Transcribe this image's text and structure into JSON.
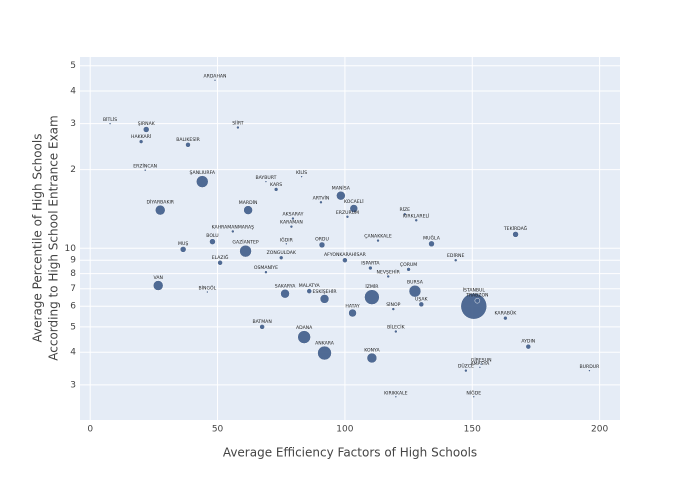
{
  "chart_data": {
    "type": "scatter",
    "xlabel": "Average Efficiency Factors of High Schools",
    "ylabel": [
      "Average Percentile of High Schools",
      "According to High School Entrance Exam"
    ],
    "xlim": [
      -4,
      208
    ],
    "ylim": [
      2.2,
      54
    ],
    "log_y": true,
    "grid": true,
    "color": "#48648f",
    "xticks": [
      0,
      50,
      100,
      150,
      200
    ],
    "yticks": [
      3,
      4,
      5,
      6,
      7,
      8,
      9,
      10,
      {
        "value": 20,
        "label": "2"
      },
      {
        "value": 30,
        "label": "3"
      },
      {
        "value": 40,
        "label": "4"
      },
      {
        "value": 50,
        "label": "5"
      }
    ],
    "labels": [
      "ARDAHAN",
      "BİTLİS",
      "ŞIRNAK",
      "HAKKARİ",
      "SİİRT",
      "BALIKESİR",
      "ERZİNCAN",
      "ŞANLIURFA",
      "BAYBURT",
      "KARS",
      "KİLİS",
      "MANİSA",
      "ARTVİN",
      "KOCAELİ",
      "DİYARBAKIR",
      "MARDİN",
      "ERZURUM",
      "RİZE",
      "KIRKLARELİ",
      "AKSARAY",
      "KARAMAN",
      "TEKİRDAĞ",
      "ÇANAKKALE",
      "MUĞLA",
      "KAHRAMANMARAŞ",
      "BOLU",
      "MUŞ",
      "GAZİANTEP",
      "IĞDIR",
      "ORDU",
      "AFYONKARAHİSAR",
      "ISPARTA",
      "EDİRNE",
      "ELAZIĞ",
      "ZONGULDAK",
      "OSMANİYE",
      "NEVŞEHİR",
      "ÇORUM",
      "BURSA",
      "İSTANBUL",
      "TRABZON",
      "UŞAK",
      "VAN",
      "BİNGÖL",
      "SAKARYA",
      "MALATYA",
      "ESKİŞEHİR",
      "İZMİR",
      "ANKARA",
      "ADANA",
      "KONYA",
      "BATMAN",
      "SİNOP",
      "HATAY",
      "BİLECİK",
      "KARABÜK",
      "AYDIN",
      "AMASYA",
      "GİRESUN",
      "DÜZCE",
      "BURDUR",
      "KIRIKKALE",
      "NİĞDE"
    ],
    "x": [
      49,
      7.8,
      22,
      20,
      58,
      38.4,
      21.6,
      44,
      69,
      73,
      83,
      98.4,
      90.6,
      103.5,
      27.5,
      62,
      101,
      123.5,
      128,
      79.6,
      79,
      167,
      113,
      134,
      56,
      48,
      36.5,
      61,
      77,
      91,
      100,
      110,
      143.5,
      51,
      75,
      69,
      117,
      125,
      127.5,
      150.6,
      152,
      130,
      26.7,
      46,
      76.5,
      86,
      92,
      110.6,
      92,
      84,
      110.6,
      67.5,
      119,
      103,
      120,
      163,
      172,
      153,
      153.5,
      147.5,
      196,
      120,
      150.6
    ],
    "y": [
      44,
      30,
      28.5,
      25.6,
      29,
      24.9,
      19.9,
      18,
      18,
      16.8,
      18.8,
      15.9,
      15,
      14.2,
      14,
      14,
      13.2,
      13.5,
      12.8,
      13,
      12.1,
      11.3,
      10.7,
      10.4,
      11.6,
      10.6,
      9.9,
      9.75,
      10.4,
      10.3,
      9,
      8.4,
      9,
      8.8,
      9.2,
      8.1,
      7.8,
      8.3,
      6.85,
      6,
      6.3,
      6.1,
      7.2,
      6.8,
      6.7,
      6.85,
      6.4,
      6.5,
      3.97,
      4.57,
      3.8,
      5,
      5.85,
      5.65,
      4.8,
      5.4,
      4.2,
      3.5,
      3.6,
      3.4,
      3.4,
      2.7,
      2.7
    ],
    "sizes": [
      2,
      2,
      6,
      4,
      3,
      5,
      2,
      12,
      2,
      4,
      2,
      9,
      3,
      8,
      10,
      9,
      3,
      3,
      3,
      3,
      3,
      6,
      3,
      6,
      3,
      6,
      6,
      12,
      2,
      6,
      5,
      4,
      3,
      5,
      4,
      3,
      3,
      4,
      12,
      26,
      5,
      5,
      10,
      2,
      9,
      5,
      9,
      15,
      14,
      13,
      10,
      5,
      3,
      8,
      3,
      4,
      5,
      2,
      2,
      3,
      2,
      2,
      2
    ]
  }
}
